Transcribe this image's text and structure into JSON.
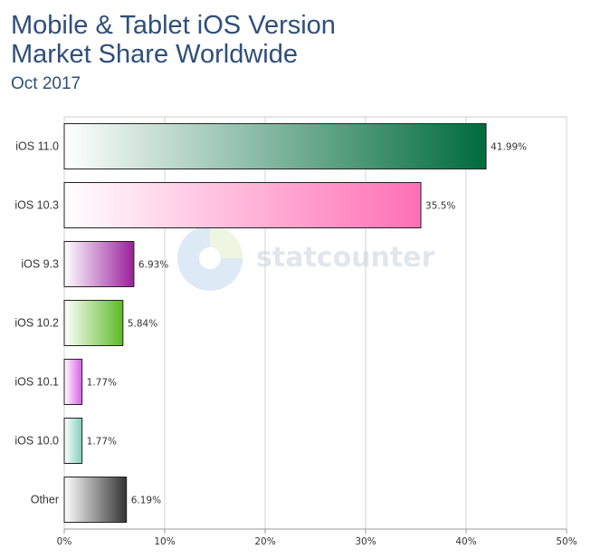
{
  "title_line1": "Mobile & Tablet iOS Version",
  "title_line2": "Market Share Worldwide",
  "subtitle": "Oct 2017",
  "watermark": "statcounter",
  "colors": {
    "ios110": "#006b3c",
    "ios103": "#ff6fb5",
    "ios93": "#9b1f9b",
    "ios102": "#5cba24",
    "ios101": "#d65fe3",
    "ios100": "#7ed0b8",
    "other": "#333333"
  },
  "chart_data": {
    "type": "bar",
    "orientation": "horizontal",
    "categories": [
      "iOS 11.0",
      "iOS 10.3",
      "iOS 9.3",
      "iOS 10.2",
      "iOS 10.1",
      "iOS 10.0",
      "Other"
    ],
    "values": [
      41.99,
      35.5,
      6.93,
      5.84,
      1.77,
      1.77,
      6.19
    ],
    "value_labels": [
      "41.99%",
      "35.5%",
      "6.93%",
      "5.84%",
      "1.77%",
      "1.77%",
      "6.19%"
    ],
    "xlim": [
      0,
      50
    ],
    "ticks": [
      0,
      10,
      20,
      30,
      40,
      50
    ],
    "tick_labels": [
      "0%",
      "10%",
      "20%",
      "30%",
      "40%",
      "50%"
    ],
    "grid": true,
    "legend": "none"
  }
}
